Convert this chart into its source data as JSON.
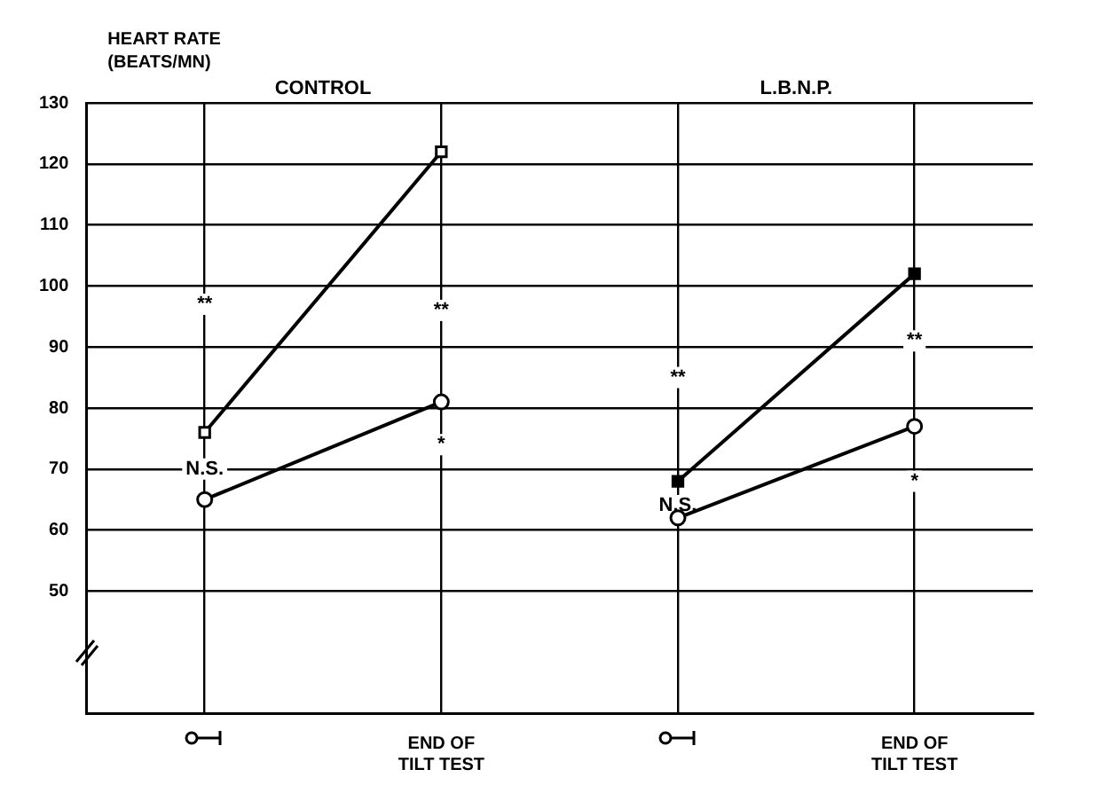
{
  "chart_data": {
    "type": "line",
    "ylabel": "HEART RATE\n(BEATS/MN)",
    "categories": [
      null,
      "END OF\nTILT TEST",
      null,
      "END OF\nTILT TEST"
    ],
    "series": [
      {
        "color": "#000000",
        "marker": "square",
        "colors": [
          "#ffffff",
          "#ffffff",
          null,
          null
        ],
        "values": [
          76,
          122,
          null,
          null
        ]
      },
      {
        "color": "#000000",
        "marker": "circle",
        "colors": [
          "#ffffff",
          "#ffffff",
          null,
          null
        ],
        "values": [
          65,
          81,
          null,
          null
        ]
      },
      {
        "color": "#000000",
        "marker": "square",
        "colors": [
          null,
          null,
          "#000000",
          "#000000"
        ],
        "values": [
          null,
          null,
          68,
          102
        ]
      },
      {
        "color": "#000000",
        "marker": "circle",
        "colors": [
          null,
          null,
          "#ffffff",
          "#ffffff"
        ],
        "values": [
          null,
          null,
          62,
          77
        ]
      }
    ],
    "ylim": [
      30,
      130
    ],
    "yticks": [
      50,
      60,
      70,
      80,
      90,
      100,
      110,
      120,
      130
    ],
    "grid": true,
    "legend": false,
    "line_style": "solid",
    "annotations": [
      "CONTROL",
      "L.B.N.P.",
      {
        "text": "**",
        "y": 97
      },
      {
        "text": "N.S.",
        "y": 70
      },
      {
        "text": "**",
        "y": 96
      },
      {
        "text": "*",
        "y": 74
      },
      {
        "text": "**",
        "y": 85
      },
      {
        "text": "N.S.",
        "y": 64
      },
      {
        "text": "**",
        "y": 91
      },
      {
        "text": "*",
        "y": 68
      }
    ]
  }
}
